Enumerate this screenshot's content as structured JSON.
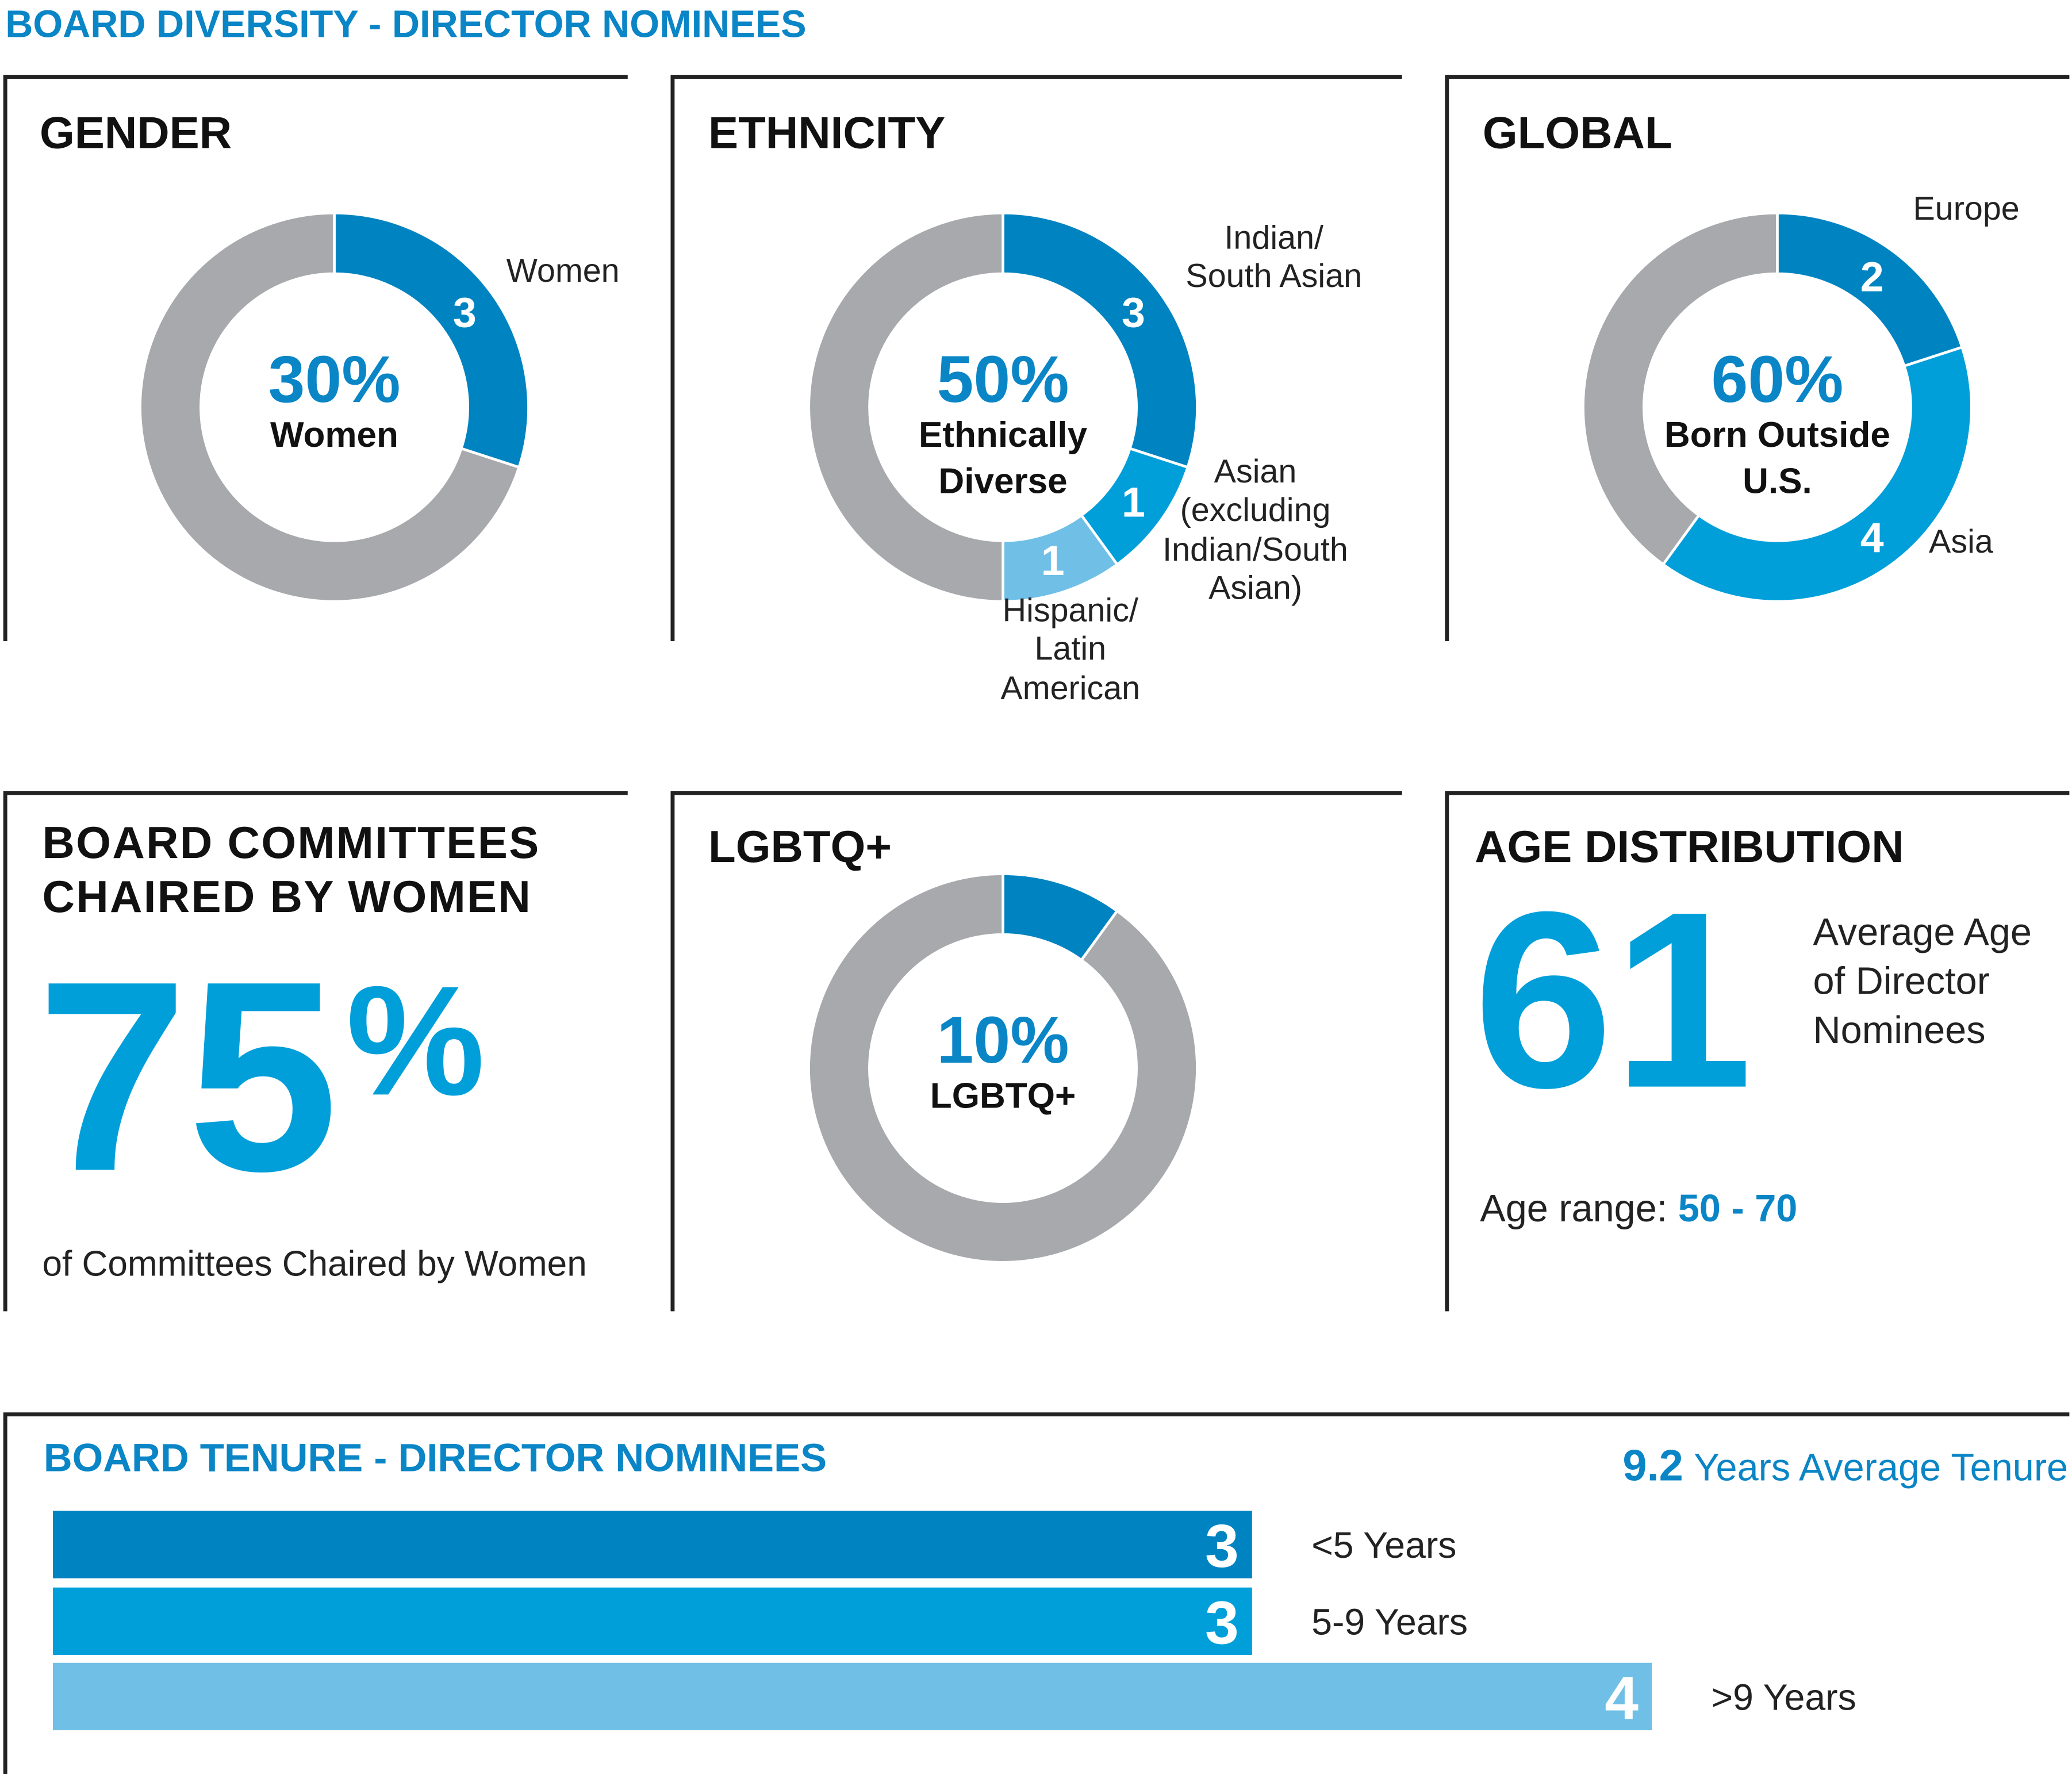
{
  "title": "BOARD DIVERSITY - DIRECTOR NOMINEES",
  "chart_data": [
    {
      "type": "donut",
      "title": "GENDER",
      "center_value": "30%",
      "center_label": "Women",
      "categories": [
        "Women",
        null
      ],
      "values": [
        3,
        7
      ],
      "colors": [
        "#0083c1",
        "#a7a9ac"
      ]
    },
    {
      "type": "donut",
      "title": "ETHNICITY",
      "center_value": "50%",
      "center_label": "Ethnically\nDiverse",
      "categories": [
        "Indian/\nSouth Asian",
        "Asian\n(excluding\nIndian/South\nAsian)",
        "Hispanic/\nLatin\nAmerican",
        null
      ],
      "values": [
        3,
        1,
        1,
        5
      ],
      "colors": [
        "#0083c1",
        "#009fda",
        "#6fbfe6",
        "#a7a9ac"
      ]
    },
    {
      "type": "donut",
      "title": "GLOBAL",
      "center_value": "60%",
      "center_label": "Born Outside\nU.S.",
      "categories": [
        "Europe",
        "Asia",
        null
      ],
      "values": [
        2,
        4,
        4
      ],
      "colors": [
        "#0083c1",
        "#009fda",
        "#a7a9ac"
      ]
    },
    {
      "type": "stat",
      "title": "BOARD COMMITTEES\nCHAIRED BY WOMEN",
      "value": "75",
      "unit": "%",
      "caption": "of Committees Chaired by Women"
    },
    {
      "type": "donut",
      "title": "LGBTQ+",
      "center_value": "10%",
      "center_label": "LGBTQ+",
      "categories": [
        null,
        null
      ],
      "values": [
        1,
        9
      ],
      "colors": [
        "#0083c1",
        "#a7a9ac"
      ]
    },
    {
      "type": "age",
      "title": "AGE DISTRIBUTION",
      "value": "61",
      "label": "Average Age\nof Director\nNominees",
      "range_label": "Age range: ",
      "range": "50 - 70"
    },
    {
      "type": "hbar",
      "title": "BOARD TENURE - DIRECTOR NOMINEES",
      "average": "9.2",
      "average_label": "Years Average Tenure",
      "categories": [
        "<5 Years",
        "5-9 Years",
        ">9 Years"
      ],
      "values": [
        3,
        3,
        4
      ],
      "colors": [
        "#0083c1",
        "#009fda",
        "#6fbfe6"
      ]
    }
  ]
}
